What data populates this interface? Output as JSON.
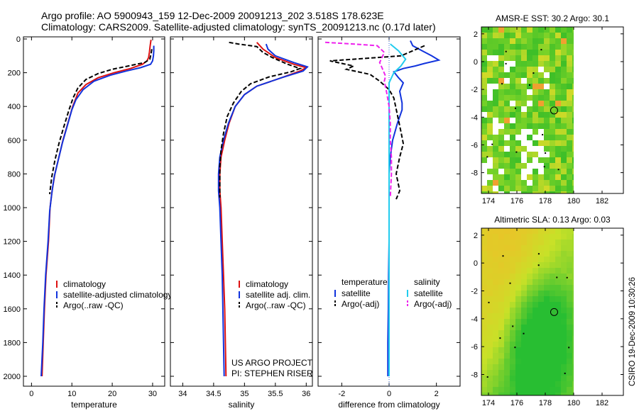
{
  "title_line1": "Argo profile: AO 5900943_159 12-Dec-2009 20091213_202 3.518S 178.623E",
  "title_line2": "Climatology: CARS2009. Satellite-adjusted climatology: synTS_20091213.nc (0.17d later)",
  "side_stamp": "CSIRO 19-Dec-2009 10:30:26",
  "colors": {
    "climatology": "#dd1111",
    "satellite": "#1133dd",
    "argo": "#000000",
    "sal_satellite": "#22ccee",
    "sal_argo": "#ee22ee",
    "zero_line": "#3366cc"
  },
  "chart_data": [
    {
      "type": "line",
      "name": "temperature-profile",
      "xlabel": "temperature",
      "ylabel": "",
      "xlim": [
        -2,
        33
      ],
      "ylim": [
        2100,
        0
      ],
      "xticks": [
        0,
        10,
        20,
        30
      ],
      "yticks": [
        0,
        200,
        400,
        600,
        800,
        1000,
        1200,
        1400,
        1600,
        1800,
        2000
      ],
      "legend": {
        "position": "lower-right",
        "entries": [
          "climatology",
          "satellite-adjusted climatology",
          "Argo(..raw -QC)"
        ]
      },
      "series": [
        {
          "name": "climatology",
          "color_key": "climatology",
          "dash": false,
          "points": [
            [
              29.6,
              5
            ],
            [
              29.4,
              40
            ],
            [
              29.2,
              80
            ],
            [
              29.0,
              110
            ],
            [
              28.6,
              130
            ],
            [
              27.5,
              150
            ],
            [
              24.5,
              175
            ],
            [
              20.5,
              200
            ],
            [
              16.5,
              230
            ],
            [
              13.5,
              270
            ],
            [
              11.5,
              320
            ],
            [
              10.2,
              400
            ],
            [
              9.0,
              500
            ],
            [
              7.8,
              600
            ],
            [
              6.8,
              700
            ],
            [
              5.8,
              800
            ],
            [
              5.1,
              900
            ],
            [
              4.6,
              1000
            ],
            [
              4.2,
              1200
            ],
            [
              3.6,
              1400
            ],
            [
              3.2,
              1600
            ],
            [
              2.9,
              1800
            ],
            [
              2.6,
              2000
            ]
          ]
        },
        {
          "name": "satellite-adjusted climatology",
          "color_key": "satellite",
          "dash": false,
          "points": [
            [
              30.3,
              40
            ],
            [
              30.3,
              70
            ],
            [
              30.2,
              100
            ],
            [
              30.0,
              130
            ],
            [
              29.5,
              150
            ],
            [
              27.0,
              170
            ],
            [
              23.5,
              190
            ],
            [
              19.5,
              215
            ],
            [
              15.5,
              250
            ],
            [
              12.8,
              300
            ],
            [
              11.0,
              360
            ],
            [
              10.0,
              420
            ],
            [
              8.8,
              520
            ],
            [
              7.6,
              620
            ],
            [
              6.6,
              720
            ],
            [
              5.6,
              820
            ],
            [
              5.0,
              920
            ],
            [
              4.5,
              1020
            ],
            [
              4.1,
              1200
            ],
            [
              3.5,
              1400
            ],
            [
              3.1,
              1600
            ],
            [
              2.8,
              1800
            ],
            [
              2.4,
              2000
            ]
          ]
        },
        {
          "name": "Argo(..raw -QC)",
          "color_key": "argo",
          "dash": true,
          "points": [
            [
              29.8,
              60
            ],
            [
              29.6,
              90
            ],
            [
              29.3,
              120
            ],
            [
              28.0,
              140
            ],
            [
              24.0,
              160
            ],
            [
              20.0,
              180
            ],
            [
              16.5,
              205
            ],
            [
              13.5,
              240
            ],
            [
              11.5,
              290
            ],
            [
              10.3,
              350
            ],
            [
              9.3,
              420
            ],
            [
              8.0,
              520
            ],
            [
              6.8,
              620
            ],
            [
              5.8,
              720
            ],
            [
              5.0,
              820
            ],
            [
              4.5,
              920
            ]
          ]
        }
      ]
    },
    {
      "type": "line",
      "name": "salinity-profile",
      "xlabel": "salinity",
      "ylabel": "",
      "xlim": [
        33.8,
        36.1
      ],
      "ylim": [
        2100,
        0
      ],
      "xticks": [
        34,
        34.5,
        35,
        35.5,
        36
      ],
      "legend": {
        "position": "lower-right",
        "entries": [
          "climatology",
          "satellite adj. clim.",
          "Argo(..raw -QC)"
        ]
      },
      "annotation": [
        "US ARGO PROJECT",
        "PI: STEPHEN RISER"
      ],
      "series": [
        {
          "name": "climatology",
          "color_key": "climatology",
          "dash": false,
          "points": [
            [
              35.2,
              20
            ],
            [
              35.3,
              60
            ],
            [
              35.5,
              110
            ],
            [
              35.8,
              150
            ],
            [
              36.0,
              170
            ],
            [
              35.9,
              190
            ],
            [
              35.6,
              230
            ],
            [
              35.2,
              280
            ],
            [
              35.0,
              330
            ],
            [
              34.85,
              400
            ],
            [
              34.75,
              500
            ],
            [
              34.68,
              600
            ],
            [
              34.62,
              700
            ],
            [
              34.6,
              800
            ],
            [
              34.6,
              900
            ],
            [
              34.62,
              1000
            ],
            [
              34.64,
              1200
            ],
            [
              34.66,
              1400
            ],
            [
              34.68,
              1600
            ],
            [
              34.69,
              1800
            ],
            [
              34.7,
              2000
            ]
          ]
        },
        {
          "name": "satellite adj. clim.",
          "color_key": "satellite",
          "dash": false,
          "points": [
            [
              35.35,
              30
            ],
            [
              35.38,
              60
            ],
            [
              35.5,
              100
            ],
            [
              35.8,
              140
            ],
            [
              36.02,
              165
            ],
            [
              35.95,
              190
            ],
            [
              35.6,
              230
            ],
            [
              35.2,
              280
            ],
            [
              35.0,
              330
            ],
            [
              34.85,
              400
            ],
            [
              34.74,
              500
            ],
            [
              34.66,
              600
            ],
            [
              34.6,
              700
            ],
            [
              34.58,
              800
            ],
            [
              34.58,
              900
            ],
            [
              34.6,
              1000
            ],
            [
              34.62,
              1200
            ],
            [
              34.64,
              1400
            ],
            [
              34.65,
              1600
            ],
            [
              34.66,
              1800
            ],
            [
              34.67,
              2000
            ]
          ]
        },
        {
          "name": "Argo(..raw -QC)",
          "color_key": "argo",
          "dash": true,
          "points": [
            [
              34.75,
              20
            ],
            [
              34.9,
              30
            ],
            [
              35.2,
              45
            ],
            [
              35.3,
              80
            ],
            [
              35.45,
              110
            ],
            [
              35.7,
              150
            ],
            [
              35.9,
              175
            ],
            [
              35.75,
              195
            ],
            [
              35.4,
              225
            ],
            [
              35.1,
              265
            ],
            [
              34.95,
              310
            ],
            [
              34.82,
              380
            ],
            [
              34.72,
              460
            ],
            [
              34.66,
              560
            ],
            [
              34.62,
              660
            ],
            [
              34.6,
              760
            ],
            [
              34.6,
              860
            ],
            [
              34.6,
              940
            ]
          ]
        }
      ]
    },
    {
      "type": "line",
      "name": "difference-profile",
      "xlabel": "difference from climatology",
      "ylabel": "",
      "xlim": [
        -3,
        3
      ],
      "ylim": [
        2100,
        0
      ],
      "xticks": [
        -2,
        0,
        2
      ],
      "legend": {
        "position": "middle",
        "headers": [
          "temperature",
          "salinity"
        ],
        "entries": [
          "satellite",
          "Argo(-adj)",
          "satellite",
          "Argo(-adj)"
        ]
      },
      "series": [
        {
          "name": "temperature satellite",
          "color_key": "satellite",
          "dash": false,
          "points": [
            [
              0.9,
              10
            ],
            [
              1.0,
              40
            ],
            [
              1.4,
              70
            ],
            [
              1.8,
              100
            ],
            [
              2.1,
              125
            ],
            [
              1.5,
              145
            ],
            [
              1.1,
              160
            ],
            [
              0.6,
              175
            ],
            [
              0.2,
              195
            ],
            [
              0.4,
              230
            ],
            [
              0.6,
              260
            ],
            [
              0.45,
              310
            ],
            [
              0.55,
              380
            ],
            [
              0.55,
              420
            ],
            [
              0.35,
              500
            ],
            [
              0.15,
              600
            ],
            [
              0.05,
              700
            ],
            [
              0.0,
              800
            ],
            [
              0.0,
              1000
            ],
            [
              0.0,
              1200
            ],
            [
              -0.02,
              1400
            ],
            [
              -0.03,
              1600
            ],
            [
              -0.05,
              1800
            ],
            [
              -0.05,
              2000
            ]
          ]
        },
        {
          "name": "temperature Argo(-adj)",
          "color_key": "argo",
          "dash": true,
          "points": [
            [
              1.5,
              40
            ],
            [
              1.0,
              70
            ],
            [
              0.5,
              100
            ],
            [
              -1.0,
              115
            ],
            [
              -2.5,
              130
            ],
            [
              -1.5,
              160
            ],
            [
              -1.8,
              180
            ],
            [
              -0.8,
              210
            ],
            [
              -0.4,
              250
            ],
            [
              0.0,
              300
            ],
            [
              0.2,
              350
            ],
            [
              0.35,
              450
            ],
            [
              0.5,
              550
            ],
            [
              0.6,
              620
            ],
            [
              0.45,
              700
            ],
            [
              0.3,
              800
            ],
            [
              0.45,
              900
            ],
            [
              0.3,
              950
            ]
          ]
        },
        {
          "name": "salinity satellite",
          "color_key": "sal_satellite",
          "dash": false,
          "points": [
            [
              0.05,
              30
            ],
            [
              0.4,
              70
            ],
            [
              0.7,
              120
            ],
            [
              0.5,
              160
            ],
            [
              0.2,
              200
            ],
            [
              0.0,
              260
            ],
            [
              0.0,
              400
            ],
            [
              0.0,
              800
            ],
            [
              0.0,
              1200
            ],
            [
              0.0,
              1600
            ],
            [
              0.0,
              2000
            ]
          ]
        },
        {
          "name": "salinity Argo(-adj)",
          "color_key": "sal_argo",
          "dash": true,
          "points": [
            [
              -2.7,
              20
            ],
            [
              -1.5,
              30
            ],
            [
              -0.5,
              40
            ],
            [
              -0.2,
              80
            ],
            [
              -0.4,
              140
            ],
            [
              -0.3,
              170
            ],
            [
              -0.15,
              220
            ],
            [
              -0.2,
              250
            ],
            [
              -0.1,
              320
            ],
            [
              0.0,
              400
            ],
            [
              0.05,
              500
            ],
            [
              0.05,
              600
            ],
            [
              0.1,
              700
            ],
            [
              0.1,
              800
            ],
            [
              0.05,
              940
            ]
          ]
        }
      ]
    },
    {
      "type": "heatmap",
      "name": "sst-map",
      "title": "AMSR-E SST: 30.2 Argo: 30.1",
      "xlim": [
        173.5,
        183.5
      ],
      "ylim": [
        -9.5,
        2.5
      ],
      "xticks": [
        174,
        176,
        178,
        180,
        182
      ],
      "yticks": [
        2,
        0,
        -2,
        -4,
        -6,
        -8
      ],
      "data_lon_range": [
        173.5,
        180
      ],
      "marker": {
        "lon": 178.623,
        "lat": -3.518,
        "filled": false
      }
    },
    {
      "type": "heatmap",
      "name": "sla-map",
      "title": "Altimetric SLA: 0.13 Argo: 0.03",
      "xlim": [
        173.5,
        183.5
      ],
      "ylim": [
        -9.5,
        2.5
      ],
      "xticks": [
        174,
        176,
        178,
        180,
        182
      ],
      "yticks": [
        2,
        0,
        -2,
        -4,
        -6,
        -8
      ],
      "data_lon_range": [
        173.5,
        180
      ],
      "marker": {
        "lon": 178.623,
        "lat": -3.518,
        "filled": true
      }
    }
  ]
}
